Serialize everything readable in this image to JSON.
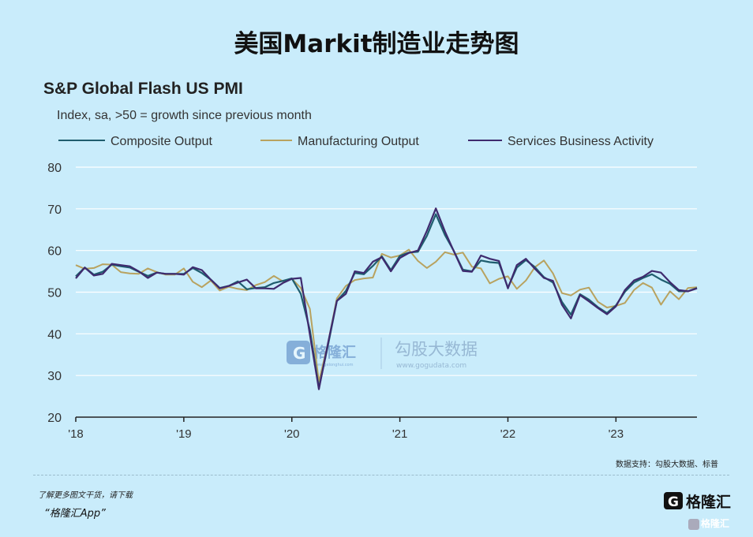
{
  "page": {
    "title": "美国Markit制造业走势图",
    "source": "数据支持：勾股大数据、标普",
    "footer_note": "了解更多图文干货，请下载",
    "footer_app": "“格隆汇App”",
    "footer_logo_text": "格隆汇",
    "footer_tiny_text": "格隆汇"
  },
  "watermark": {
    "brand": "格隆汇",
    "brand_sub": "www.gelonghui.com",
    "brand2": "勾股大数据",
    "brand2_sub": "www.gogudata.com"
  },
  "chart_data": {
    "type": "line",
    "title": "S&P Global Flash US PMI",
    "subtitle": "Index, sa, >50 = growth since previous month",
    "xlabel": "",
    "ylabel": "",
    "ylim": [
      20,
      80
    ],
    "yticks": [
      20,
      30,
      40,
      50,
      60,
      70,
      80
    ],
    "xlim": [
      2018.0,
      2023.83
    ],
    "xticks": [
      {
        "value": 2018,
        "label": "'18"
      },
      {
        "value": 2019,
        "label": "'19"
      },
      {
        "value": 2020,
        "label": "'20"
      },
      {
        "value": 2021,
        "label": "'21"
      },
      {
        "value": 2022,
        "label": "'22"
      },
      {
        "value": 2023,
        "label": "'23"
      }
    ],
    "grid": "horizontal",
    "legend": "top",
    "series": [
      {
        "name": "Composite Output",
        "color": "#1f5d6e",
        "points": [
          [
            2018.0,
            53.8
          ],
          [
            2018.083,
            55.9
          ],
          [
            2018.167,
            54.2
          ],
          [
            2018.25,
            54.9
          ],
          [
            2018.333,
            56.6
          ],
          [
            2018.417,
            56.2
          ],
          [
            2018.5,
            55.9
          ],
          [
            2018.583,
            54.9
          ],
          [
            2018.667,
            53.9
          ],
          [
            2018.75,
            54.7
          ],
          [
            2018.833,
            54.4
          ],
          [
            2018.917,
            54.4
          ],
          [
            2019.0,
            54.4
          ],
          [
            2019.083,
            55.8
          ],
          [
            2019.167,
            54.6
          ],
          [
            2019.25,
            53.0
          ],
          [
            2019.333,
            51.0
          ],
          [
            2019.417,
            51.5
          ],
          [
            2019.5,
            52.6
          ],
          [
            2019.583,
            50.7
          ],
          [
            2019.667,
            51.0
          ],
          [
            2019.75,
            51.2
          ],
          [
            2019.833,
            52.2
          ],
          [
            2019.917,
            52.7
          ],
          [
            2020.0,
            53.3
          ],
          [
            2020.083,
            49.6
          ],
          [
            2020.167,
            40.9
          ],
          [
            2020.25,
            27.0
          ],
          [
            2020.333,
            37.0
          ],
          [
            2020.417,
            47.9
          ],
          [
            2020.5,
            50.3
          ],
          [
            2020.583,
            54.6
          ],
          [
            2020.667,
            54.3
          ],
          [
            2020.75,
            56.3
          ],
          [
            2020.833,
            58.6
          ],
          [
            2020.917,
            55.3
          ],
          [
            2021.0,
            58.7
          ],
          [
            2021.083,
            59.5
          ],
          [
            2021.167,
            59.7
          ],
          [
            2021.25,
            63.5
          ],
          [
            2021.333,
            68.7
          ],
          [
            2021.417,
            63.7
          ],
          [
            2021.5,
            59.9
          ],
          [
            2021.583,
            55.4
          ],
          [
            2021.667,
            55.0
          ],
          [
            2021.75,
            57.6
          ],
          [
            2021.833,
            57.2
          ],
          [
            2021.917,
            57.0
          ],
          [
            2022.0,
            51.1
          ],
          [
            2022.083,
            55.9
          ],
          [
            2022.167,
            57.7
          ],
          [
            2022.25,
            56.0
          ],
          [
            2022.333,
            53.6
          ],
          [
            2022.417,
            52.3
          ],
          [
            2022.5,
            47.7
          ],
          [
            2022.583,
            44.6
          ],
          [
            2022.667,
            49.5
          ],
          [
            2022.75,
            48.2
          ],
          [
            2022.833,
            46.4
          ],
          [
            2022.917,
            45.0
          ],
          [
            2023.0,
            46.8
          ],
          [
            2023.083,
            50.1
          ],
          [
            2023.167,
            52.3
          ],
          [
            2023.25,
            53.4
          ],
          [
            2023.333,
            54.3
          ],
          [
            2023.417,
            53.0
          ],
          [
            2023.5,
            52.0
          ],
          [
            2023.583,
            50.2
          ],
          [
            2023.667,
            50.2
          ],
          [
            2023.75,
            51.0
          ]
        ]
      },
      {
        "name": "Manufacturing Output",
        "color": "#b8a25f",
        "points": [
          [
            2018.0,
            56.5
          ],
          [
            2018.083,
            55.6
          ],
          [
            2018.167,
            55.8
          ],
          [
            2018.25,
            56.7
          ],
          [
            2018.333,
            56.6
          ],
          [
            2018.417,
            54.8
          ],
          [
            2018.5,
            54.5
          ],
          [
            2018.583,
            54.4
          ],
          [
            2018.667,
            55.7
          ],
          [
            2018.75,
            54.8
          ],
          [
            2018.833,
            54.2
          ],
          [
            2018.917,
            54.2
          ],
          [
            2019.0,
            55.7
          ],
          [
            2019.083,
            52.5
          ],
          [
            2019.167,
            51.2
          ],
          [
            2019.25,
            52.8
          ],
          [
            2019.333,
            50.4
          ],
          [
            2019.417,
            51.3
          ],
          [
            2019.5,
            50.8
          ],
          [
            2019.583,
            50.5
          ],
          [
            2019.667,
            51.7
          ],
          [
            2019.75,
            52.4
          ],
          [
            2019.833,
            53.9
          ],
          [
            2019.917,
            52.6
          ],
          [
            2020.0,
            53.2
          ],
          [
            2020.083,
            51.0
          ],
          [
            2020.167,
            46.0
          ],
          [
            2020.25,
            28.5
          ],
          [
            2020.333,
            37.5
          ],
          [
            2020.417,
            48.5
          ],
          [
            2020.5,
            51.5
          ],
          [
            2020.583,
            52.9
          ],
          [
            2020.667,
            53.3
          ],
          [
            2020.75,
            53.5
          ],
          [
            2020.833,
            59.2
          ],
          [
            2020.917,
            58.3
          ],
          [
            2021.0,
            58.8
          ],
          [
            2021.083,
            60.2
          ],
          [
            2021.167,
            57.5
          ],
          [
            2021.25,
            55.8
          ],
          [
            2021.333,
            57.3
          ],
          [
            2021.417,
            59.6
          ],
          [
            2021.5,
            59.0
          ],
          [
            2021.583,
            59.5
          ],
          [
            2021.667,
            56.1
          ],
          [
            2021.75,
            55.7
          ],
          [
            2021.833,
            52.1
          ],
          [
            2021.917,
            53.2
          ],
          [
            2022.0,
            53.8
          ],
          [
            2022.083,
            50.8
          ],
          [
            2022.167,
            52.8
          ],
          [
            2022.25,
            56.0
          ],
          [
            2022.333,
            57.6
          ],
          [
            2022.417,
            54.5
          ],
          [
            2022.5,
            49.8
          ],
          [
            2022.583,
            49.2
          ],
          [
            2022.667,
            50.6
          ],
          [
            2022.75,
            51.1
          ],
          [
            2022.833,
            47.7
          ],
          [
            2022.917,
            46.3
          ],
          [
            2023.0,
            46.7
          ],
          [
            2023.083,
            47.4
          ],
          [
            2023.167,
            50.5
          ],
          [
            2023.25,
            52.2
          ],
          [
            2023.333,
            51.1
          ],
          [
            2023.417,
            47.0
          ],
          [
            2023.5,
            50.2
          ],
          [
            2023.583,
            48.3
          ],
          [
            2023.667,
            51.0
          ],
          [
            2023.75,
            51.2
          ]
        ]
      },
      {
        "name": "Services Business Activity",
        "color": "#3f2a6e",
        "points": [
          [
            2018.0,
            53.3
          ],
          [
            2018.083,
            55.9
          ],
          [
            2018.167,
            54.0
          ],
          [
            2018.25,
            54.4
          ],
          [
            2018.333,
            56.8
          ],
          [
            2018.417,
            56.5
          ],
          [
            2018.5,
            56.2
          ],
          [
            2018.583,
            55.0
          ],
          [
            2018.667,
            53.4
          ],
          [
            2018.75,
            54.7
          ],
          [
            2018.833,
            54.4
          ],
          [
            2018.917,
            54.4
          ],
          [
            2019.0,
            54.2
          ],
          [
            2019.083,
            56.0
          ],
          [
            2019.167,
            55.3
          ],
          [
            2019.25,
            53.0
          ],
          [
            2019.333,
            50.9
          ],
          [
            2019.417,
            51.5
          ],
          [
            2019.5,
            52.3
          ],
          [
            2019.583,
            53.0
          ],
          [
            2019.667,
            50.9
          ],
          [
            2019.75,
            50.9
          ],
          [
            2019.833,
            50.8
          ],
          [
            2019.917,
            52.2
          ],
          [
            2020.0,
            53.2
          ],
          [
            2020.083,
            53.4
          ],
          [
            2020.167,
            39.8
          ],
          [
            2020.25,
            26.7
          ],
          [
            2020.333,
            37.5
          ],
          [
            2020.417,
            47.9
          ],
          [
            2020.5,
            49.6
          ],
          [
            2020.583,
            55.0
          ],
          [
            2020.667,
            54.6
          ],
          [
            2020.75,
            57.3
          ],
          [
            2020.833,
            58.4
          ],
          [
            2020.917,
            55.0
          ],
          [
            2021.0,
            58.2
          ],
          [
            2021.083,
            59.4
          ],
          [
            2021.167,
            60.0
          ],
          [
            2021.25,
            64.7
          ],
          [
            2021.333,
            70.1
          ],
          [
            2021.417,
            64.6
          ],
          [
            2021.5,
            59.8
          ],
          [
            2021.583,
            55.1
          ],
          [
            2021.667,
            54.9
          ],
          [
            2021.75,
            58.8
          ],
          [
            2021.833,
            58.0
          ],
          [
            2021.917,
            57.5
          ],
          [
            2022.0,
            50.9
          ],
          [
            2022.083,
            56.5
          ],
          [
            2022.167,
            58.0
          ],
          [
            2022.25,
            55.6
          ],
          [
            2022.333,
            53.4
          ],
          [
            2022.417,
            52.7
          ],
          [
            2022.5,
            47.0
          ],
          [
            2022.583,
            43.7
          ],
          [
            2022.667,
            49.3
          ],
          [
            2022.75,
            47.8
          ],
          [
            2022.833,
            46.2
          ],
          [
            2022.917,
            44.7
          ],
          [
            2023.0,
            46.6
          ],
          [
            2023.083,
            50.5
          ],
          [
            2023.167,
            52.8
          ],
          [
            2023.25,
            53.7
          ],
          [
            2023.333,
            55.1
          ],
          [
            2023.417,
            54.7
          ],
          [
            2023.5,
            52.4
          ],
          [
            2023.583,
            50.5
          ],
          [
            2023.667,
            50.2
          ],
          [
            2023.75,
            50.9
          ]
        ]
      }
    ]
  }
}
